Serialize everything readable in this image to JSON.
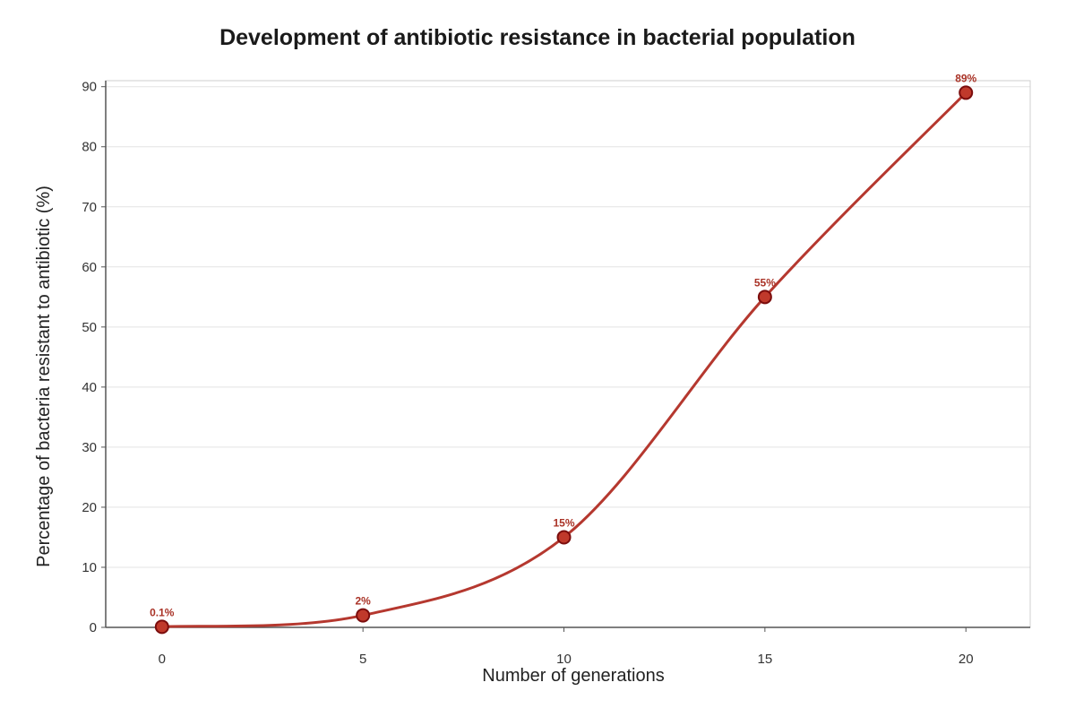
{
  "chart_data": {
    "type": "line",
    "title": "Development of antibiotic resistance in bacterial population",
    "xlabel": "Number of generations",
    "ylabel": "Percentage of bacteria resistant to antibiotic (%)",
    "xlim": [
      -1.4,
      21.6
    ],
    "ylim": [
      0,
      91
    ],
    "x_ticks": [
      0,
      5,
      10,
      15,
      20
    ],
    "y_ticks": [
      0,
      10,
      20,
      30,
      40,
      50,
      60,
      70,
      80,
      90
    ],
    "grid": true,
    "x": [
      0,
      5,
      10,
      15,
      20
    ],
    "values": [
      0.1,
      2,
      15,
      55,
      89
    ],
    "point_labels": [
      "0.1%",
      "2%",
      "15%",
      "55%",
      "89%"
    ],
    "colors": {
      "line": "#b5382f",
      "marker": "#c0392b",
      "marker_edge": "#7b0d0d",
      "label": "#a93226"
    }
  }
}
